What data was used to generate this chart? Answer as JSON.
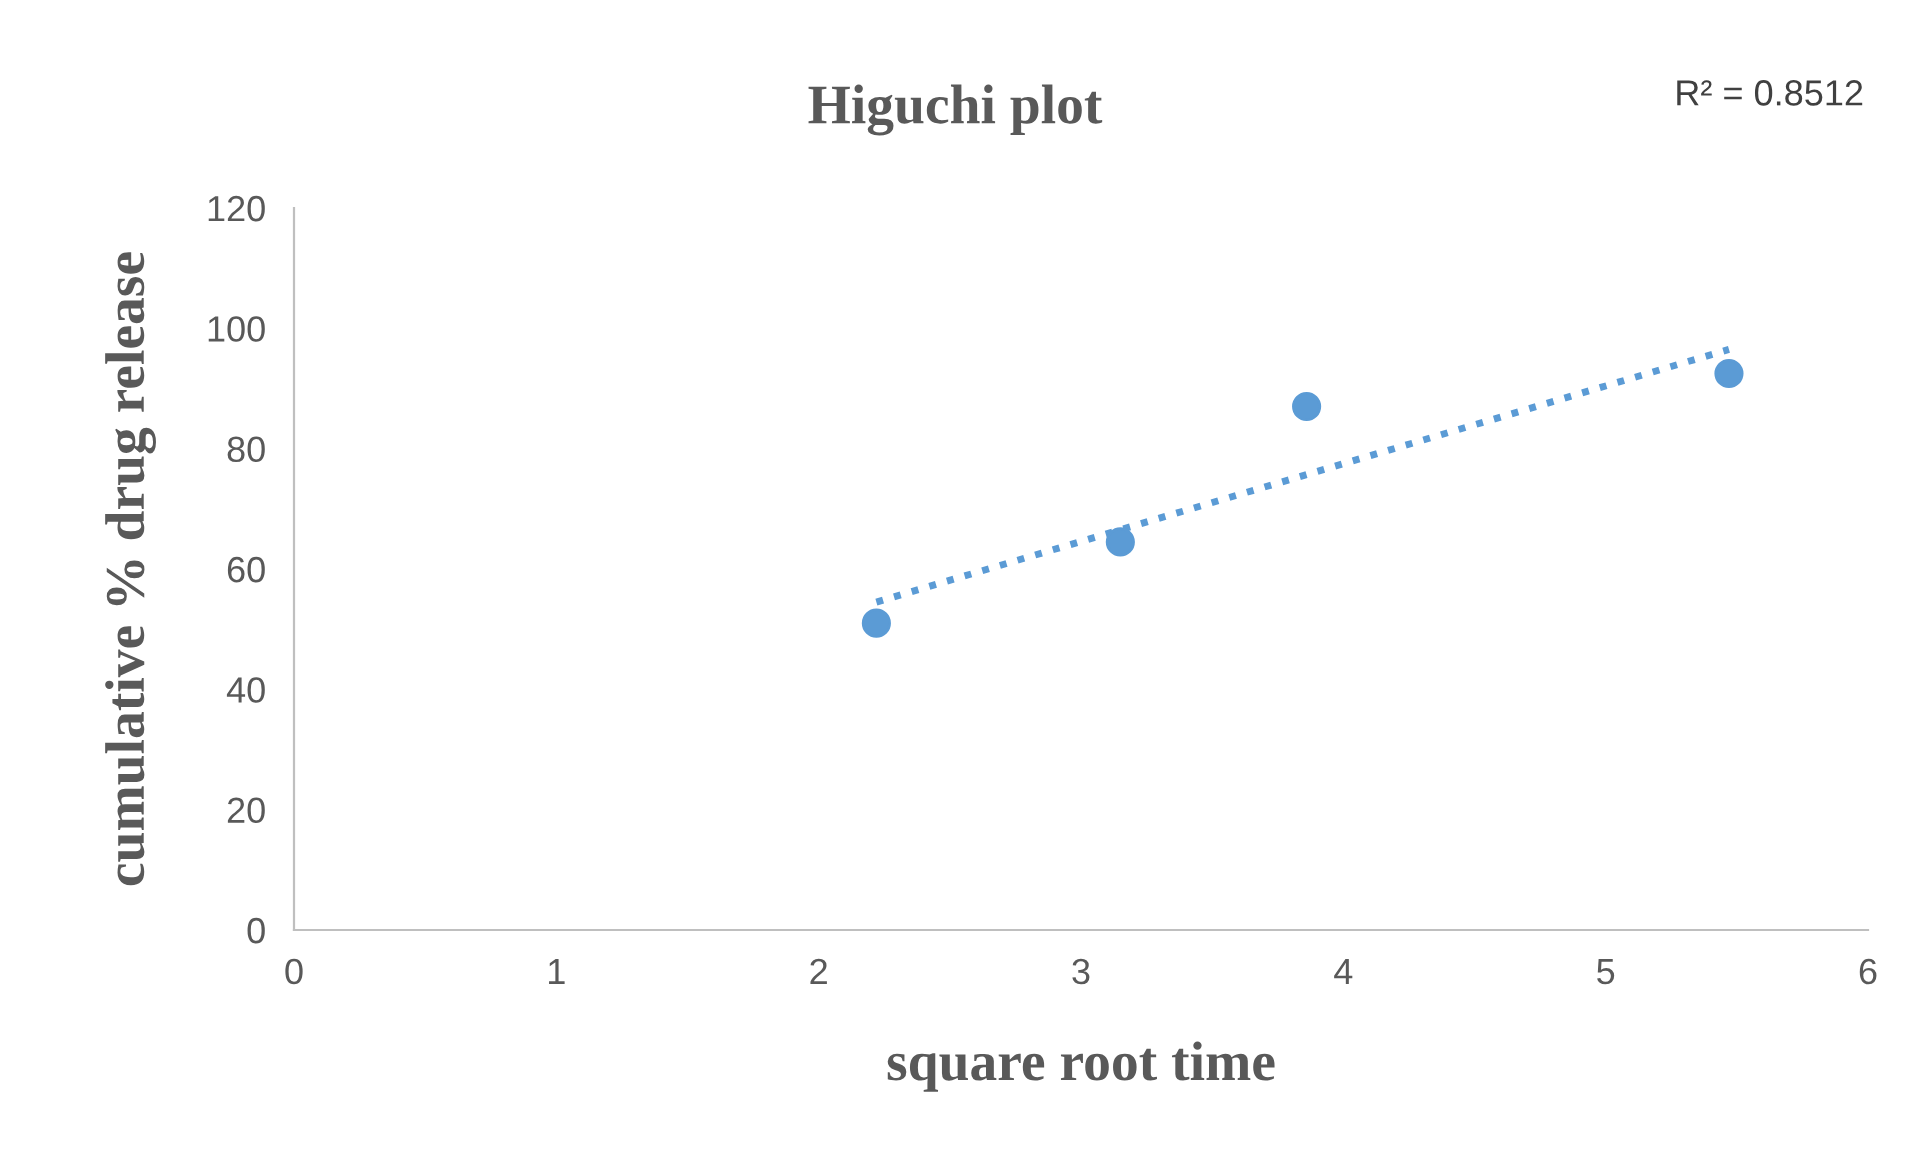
{
  "chart_data": {
    "type": "scatter",
    "title": "Higuchi plot",
    "xlabel": "square root time",
    "ylabel": "cumulative % drug release",
    "annotations": [
      "R² = 0.8512"
    ],
    "series": [
      {
        "color": "#5b9bd5",
        "x": [
          2.22,
          3.15,
          3.86,
          5.47
        ],
        "values": [
          51,
          64.5,
          87,
          92.5
        ],
        "marker": "circle"
      },
      {
        "type": "line",
        "color": "#5b9bd5",
        "x": [
          2.22,
          5.47
        ],
        "values": [
          54.5,
          96.5
        ],
        "line_style": "dotted",
        "marker": "none"
      }
    ],
    "xlim": [
      0,
      6
    ],
    "xticks": [
      0,
      1,
      2,
      3,
      4,
      5,
      6
    ],
    "ylim": [
      0,
      120
    ],
    "yticks": [
      0,
      20,
      40,
      60,
      80,
      100,
      120
    ],
    "grid": false,
    "legend": false
  }
}
